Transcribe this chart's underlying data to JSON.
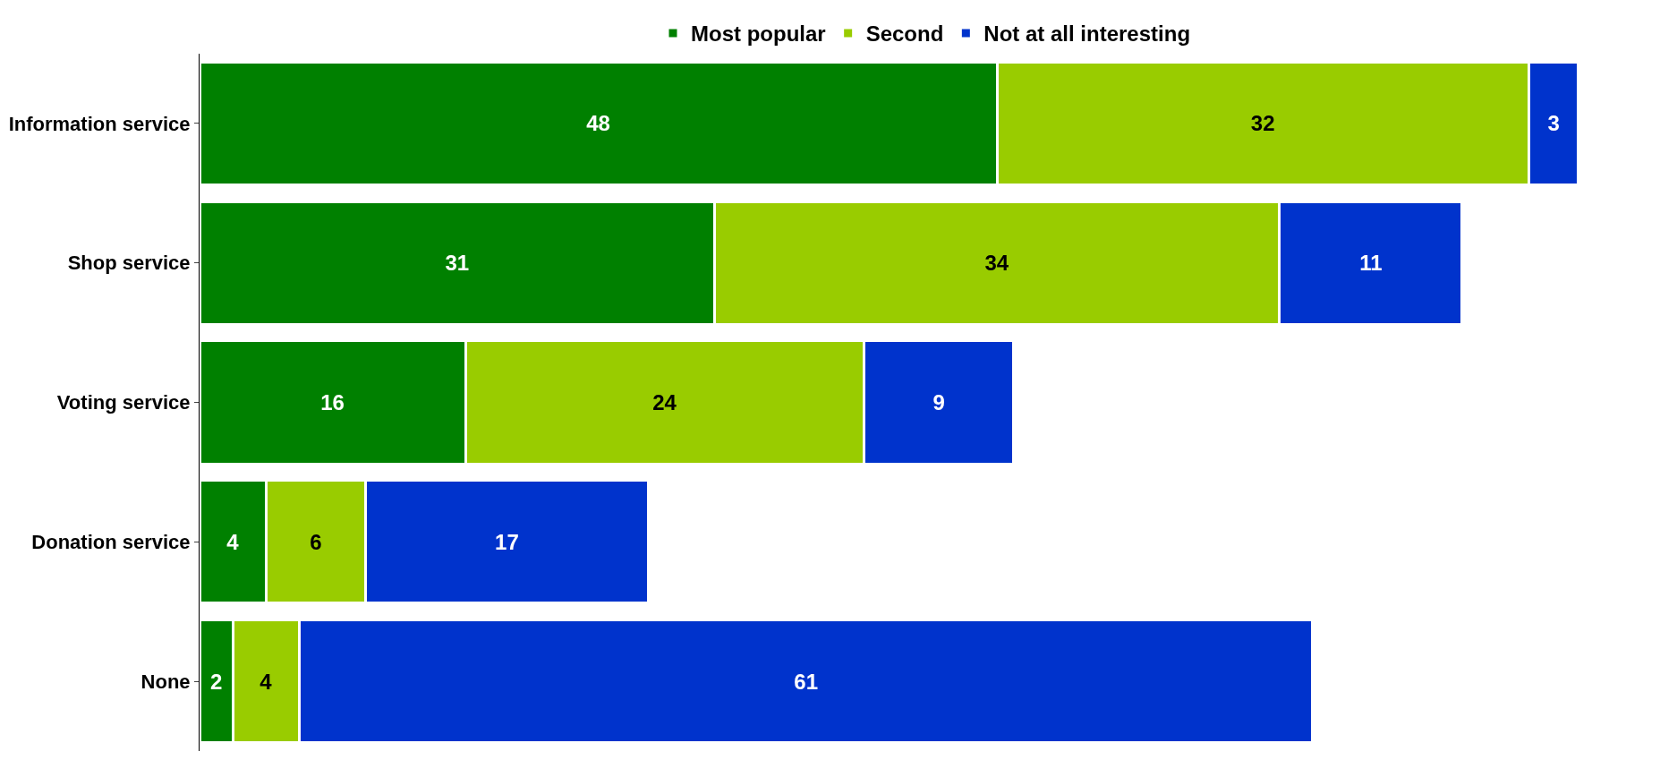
{
  "chart_data": {
    "type": "bar",
    "orientation": "horizontal",
    "stacked": true,
    "data_labels": true,
    "tick_labels": "y",
    "legend": "top",
    "categories": [
      "Information service",
      "Shop service",
      "Voting service",
      "Donation service",
      "None"
    ],
    "series": [
      {
        "name": "Most popular",
        "color": "#008000",
        "values": [
          48,
          31,
          16,
          4,
          2
        ]
      },
      {
        "name": "Second",
        "color": "#99cc00",
        "values": [
          32,
          34,
          24,
          6,
          4
        ]
      },
      {
        "name": "Not at all interesting",
        "color": "#0033cc",
        "values": [
          3,
          11,
          9,
          17,
          61
        ]
      }
    ]
  }
}
